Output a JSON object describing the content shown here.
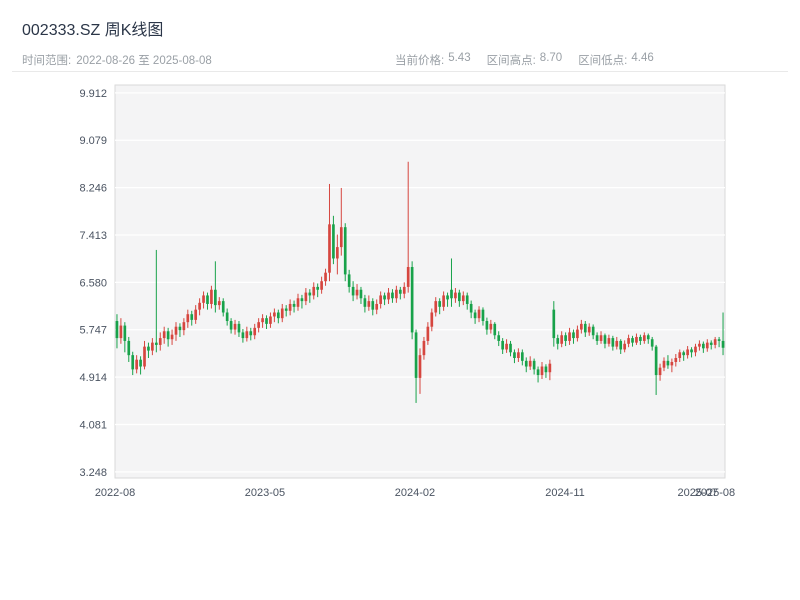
{
  "header": {
    "title": "002333.SZ 周K线图",
    "time_range": {
      "label": "时间范围:",
      "value": "2022-08-26 至 2025-08-08"
    },
    "stats": [
      {
        "label": "当前价格:",
        "value": "5.43"
      },
      {
        "label": "区间高点:",
        "value": "8.70"
      },
      {
        "label": "区间低点:",
        "value": "4.46"
      }
    ]
  },
  "chart_data": {
    "type": "candlestick",
    "title": "002333.SZ 周K线图",
    "interval": "weekly",
    "start_date": "2022-08-26",
    "end_date": "2025-08-08",
    "current_price": 5.43,
    "range_high": 8.7,
    "range_low": 4.46,
    "legend": "none",
    "grid": "horizontal",
    "ylim": [
      3.14,
      10.05
    ],
    "y_ticks": [
      3.248,
      4.081,
      4.914,
      5.747,
      6.58,
      7.413,
      8.246,
      9.079,
      9.912
    ],
    "x_ticks": [
      {
        "pos": 0.0,
        "label": "2022-08"
      },
      {
        "pos": 0.2459,
        "label": "2023-05"
      },
      {
        "pos": 0.4918,
        "label": "2024-02"
      },
      {
        "pos": 0.7377,
        "label": "2024-11"
      },
      {
        "pos": 0.9553,
        "label": "2025-07"
      },
      {
        "pos": 0.9836,
        "label": "2025-08"
      }
    ],
    "colors": {
      "up": "#d6463f",
      "down": "#18a24a",
      "plot_bg": "#f4f4f5",
      "grid": "#ffffff",
      "spine": "#d9d9d9"
    },
    "candles_format": [
      "open",
      "high",
      "low",
      "close"
    ],
    "candles": [
      [
        5.9,
        6.02,
        5.42,
        5.6
      ],
      [
        5.6,
        5.95,
        5.5,
        5.82
      ],
      [
        5.82,
        5.88,
        5.35,
        5.55
      ],
      [
        5.55,
        5.62,
        5.18,
        5.3
      ],
      [
        5.3,
        5.36,
        4.95,
        5.05
      ],
      [
        5.05,
        5.3,
        4.98,
        5.22
      ],
      [
        5.22,
        5.28,
        4.96,
        5.1
      ],
      [
        5.1,
        5.55,
        5.05,
        5.45
      ],
      [
        5.45,
        5.52,
        5.25,
        5.38
      ],
      [
        5.38,
        5.6,
        5.3,
        5.52
      ],
      [
        5.52,
        7.15,
        5.35,
        5.48
      ],
      [
        5.48,
        5.7,
        5.38,
        5.6
      ],
      [
        5.6,
        5.8,
        5.5,
        5.72
      ],
      [
        5.72,
        5.78,
        5.45,
        5.58
      ],
      [
        5.58,
        5.75,
        5.48,
        5.66
      ],
      [
        5.66,
        5.88,
        5.55,
        5.8
      ],
      [
        5.8,
        5.86,
        5.62,
        5.74
      ],
      [
        5.74,
        5.95,
        5.65,
        5.88
      ],
      [
        5.88,
        6.1,
        5.78,
        6.02
      ],
      [
        6.02,
        6.08,
        5.82,
        5.92
      ],
      [
        5.92,
        6.18,
        5.85,
        6.1
      ],
      [
        6.1,
        6.3,
        6.0,
        6.22
      ],
      [
        6.22,
        6.42,
        6.12,
        6.35
      ],
      [
        6.35,
        6.4,
        6.1,
        6.2
      ],
      [
        6.2,
        6.52,
        6.12,
        6.45
      ],
      [
        6.45,
        6.95,
        6.05,
        6.18
      ],
      [
        6.18,
        6.32,
        6.1,
        6.25
      ],
      [
        6.25,
        6.3,
        5.98,
        6.05
      ],
      [
        6.05,
        6.12,
        5.82,
        5.9
      ],
      [
        5.9,
        5.95,
        5.68,
        5.75
      ],
      [
        5.75,
        5.92,
        5.66,
        5.85
      ],
      [
        5.85,
        5.9,
        5.62,
        5.7
      ],
      [
        5.7,
        5.76,
        5.52,
        5.6
      ],
      [
        5.6,
        5.8,
        5.54,
        5.72
      ],
      [
        5.72,
        5.78,
        5.56,
        5.65
      ],
      [
        5.65,
        5.85,
        5.58,
        5.78
      ],
      [
        5.78,
        5.95,
        5.7,
        5.88
      ],
      [
        5.88,
        6.02,
        5.78,
        5.95
      ],
      [
        5.95,
        6.0,
        5.76,
        5.85
      ],
      [
        5.85,
        6.05,
        5.78,
        5.98
      ],
      [
        5.98,
        6.12,
        5.88,
        6.05
      ],
      [
        6.05,
        6.1,
        5.86,
        5.95
      ],
      [
        5.95,
        6.2,
        5.88,
        6.12
      ],
      [
        6.12,
        6.18,
        5.98,
        6.08
      ],
      [
        6.08,
        6.28,
        6.0,
        6.2
      ],
      [
        6.2,
        6.26,
        6.05,
        6.15
      ],
      [
        6.15,
        6.38,
        6.08,
        6.3
      ],
      [
        6.3,
        6.36,
        6.12,
        6.25
      ],
      [
        6.25,
        6.48,
        6.18,
        6.4
      ],
      [
        6.4,
        6.46,
        6.22,
        6.35
      ],
      [
        6.35,
        6.58,
        6.28,
        6.5
      ],
      [
        6.5,
        6.56,
        6.32,
        6.45
      ],
      [
        6.45,
        6.68,
        6.38,
        6.6
      ],
      [
        6.6,
        6.82,
        6.52,
        6.75
      ],
      [
        6.75,
        8.31,
        6.6,
        7.6
      ],
      [
        7.6,
        7.75,
        6.9,
        7.0
      ],
      [
        7.0,
        7.42,
        6.72,
        7.2
      ],
      [
        7.2,
        8.24,
        7.05,
        7.55
      ],
      [
        7.55,
        7.62,
        6.6,
        6.72
      ],
      [
        6.72,
        6.8,
        6.4,
        6.5
      ],
      [
        6.5,
        6.6,
        6.25,
        6.35
      ],
      [
        6.35,
        6.55,
        6.28,
        6.45
      ],
      [
        6.45,
        6.5,
        6.2,
        6.3
      ],
      [
        6.3,
        6.36,
        6.05,
        6.15
      ],
      [
        6.15,
        6.35,
        6.08,
        6.25
      ],
      [
        6.25,
        6.3,
        6.0,
        6.1
      ],
      [
        6.1,
        6.28,
        6.02,
        6.2
      ],
      [
        6.2,
        6.42,
        6.12,
        6.35
      ],
      [
        6.35,
        6.4,
        6.18,
        6.28
      ],
      [
        6.28,
        6.48,
        6.2,
        6.4
      ],
      [
        6.4,
        6.46,
        6.22,
        6.3
      ],
      [
        6.3,
        6.52,
        6.22,
        6.45
      ],
      [
        6.45,
        6.5,
        6.28,
        6.38
      ],
      [
        6.38,
        6.58,
        6.3,
        6.5
      ],
      [
        6.5,
        8.7,
        6.4,
        6.85
      ],
      [
        6.85,
        6.95,
        5.58,
        5.7
      ],
      [
        5.7,
        5.75,
        4.46,
        4.9
      ],
      [
        4.9,
        5.42,
        4.62,
        5.3
      ],
      [
        5.3,
        5.62,
        5.22,
        5.55
      ],
      [
        5.55,
        5.88,
        5.48,
        5.8
      ],
      [
        5.8,
        6.12,
        5.72,
        6.05
      ],
      [
        6.05,
        6.32,
        5.98,
        6.25
      ],
      [
        6.25,
        6.3,
        6.02,
        6.15
      ],
      [
        6.15,
        6.42,
        6.08,
        6.35
      ],
      [
        6.35,
        6.4,
        6.15,
        6.28
      ],
      [
        6.45,
        7.0,
        6.15,
        6.3
      ],
      [
        6.3,
        6.48,
        6.22,
        6.4
      ],
      [
        6.4,
        6.45,
        6.15,
        6.25
      ],
      [
        6.25,
        6.42,
        6.18,
        6.35
      ],
      [
        6.35,
        6.4,
        6.1,
        6.2
      ],
      [
        6.2,
        6.26,
        5.95,
        6.05
      ],
      [
        6.05,
        6.1,
        5.85,
        5.95
      ],
      [
        5.95,
        6.16,
        5.88,
        6.1
      ],
      [
        6.1,
        6.14,
        5.82,
        5.9
      ],
      [
        5.9,
        5.96,
        5.66,
        5.75
      ],
      [
        5.75,
        5.92,
        5.68,
        5.85
      ],
      [
        5.85,
        5.88,
        5.58,
        5.65
      ],
      [
        5.65,
        5.72,
        5.46,
        5.55
      ],
      [
        5.55,
        5.6,
        5.32,
        5.4
      ],
      [
        5.4,
        5.58,
        5.34,
        5.5
      ],
      [
        5.5,
        5.55,
        5.28,
        5.35
      ],
      [
        5.35,
        5.4,
        5.16,
        5.25
      ],
      [
        5.25,
        5.42,
        5.18,
        5.35
      ],
      [
        5.35,
        5.4,
        5.12,
        5.2
      ],
      [
        5.2,
        5.26,
        5.0,
        5.1
      ],
      [
        5.1,
        5.28,
        5.04,
        5.2
      ],
      [
        5.2,
        5.24,
        4.96,
        5.05
      ],
      [
        5.05,
        5.1,
        4.82,
        4.95
      ],
      [
        4.95,
        5.18,
        4.88,
        5.1
      ],
      [
        5.1,
        5.14,
        4.9,
        5.0
      ],
      [
        5.0,
        5.22,
        4.86,
        5.15
      ],
      [
        6.1,
        6.25,
        5.45,
        5.6
      ],
      [
        5.6,
        5.66,
        5.4,
        5.5
      ],
      [
        5.5,
        5.72,
        5.44,
        5.65
      ],
      [
        5.65,
        5.7,
        5.46,
        5.55
      ],
      [
        5.55,
        5.78,
        5.48,
        5.7
      ],
      [
        5.7,
        5.75,
        5.5,
        5.6
      ],
      [
        5.6,
        5.82,
        5.54,
        5.75
      ],
      [
        5.75,
        5.92,
        5.68,
        5.85
      ],
      [
        5.85,
        5.9,
        5.62,
        5.7
      ],
      [
        5.7,
        5.86,
        5.64,
        5.8
      ],
      [
        5.8,
        5.84,
        5.58,
        5.65
      ],
      [
        5.65,
        5.7,
        5.48,
        5.55
      ],
      [
        5.55,
        5.72,
        5.5,
        5.65
      ],
      [
        5.65,
        5.68,
        5.42,
        5.5
      ],
      [
        5.5,
        5.66,
        5.45,
        5.6
      ],
      [
        5.6,
        5.64,
        5.38,
        5.45
      ],
      [
        5.45,
        5.62,
        5.4,
        5.55
      ],
      [
        5.55,
        5.58,
        5.32,
        5.4
      ],
      [
        5.4,
        5.56,
        5.35,
        5.5
      ],
      [
        5.5,
        5.66,
        5.44,
        5.6
      ],
      [
        5.6,
        5.64,
        5.45,
        5.52
      ],
      [
        5.52,
        5.68,
        5.48,
        5.62
      ],
      [
        5.62,
        5.66,
        5.48,
        5.55
      ],
      [
        5.55,
        5.7,
        5.5,
        5.65
      ],
      [
        5.65,
        5.68,
        5.5,
        5.58
      ],
      [
        5.58,
        5.62,
        5.38,
        5.45
      ],
      [
        5.45,
        5.48,
        4.6,
        4.95
      ],
      [
        4.95,
        5.15,
        4.85,
        5.08
      ],
      [
        5.08,
        5.26,
        5.02,
        5.2
      ],
      [
        5.2,
        5.3,
        5.06,
        5.12
      ],
      [
        5.12,
        5.24,
        5.0,
        5.18
      ],
      [
        5.18,
        5.32,
        5.1,
        5.25
      ],
      [
        5.25,
        5.4,
        5.18,
        5.35
      ],
      [
        5.35,
        5.38,
        5.2,
        5.3
      ],
      [
        5.3,
        5.46,
        5.24,
        5.4
      ],
      [
        5.4,
        5.44,
        5.26,
        5.35
      ],
      [
        5.35,
        5.5,
        5.28,
        5.45
      ],
      [
        5.45,
        5.56,
        5.38,
        5.5
      ],
      [
        5.5,
        5.54,
        5.34,
        5.42
      ],
      [
        5.42,
        5.58,
        5.36,
        5.52
      ],
      [
        5.52,
        5.56,
        5.4,
        5.48
      ],
      [
        5.48,
        5.62,
        5.42,
        5.58
      ],
      [
        5.58,
        5.62,
        5.44,
        5.55
      ],
      [
        5.55,
        6.05,
        5.3,
        5.43
      ]
    ]
  }
}
